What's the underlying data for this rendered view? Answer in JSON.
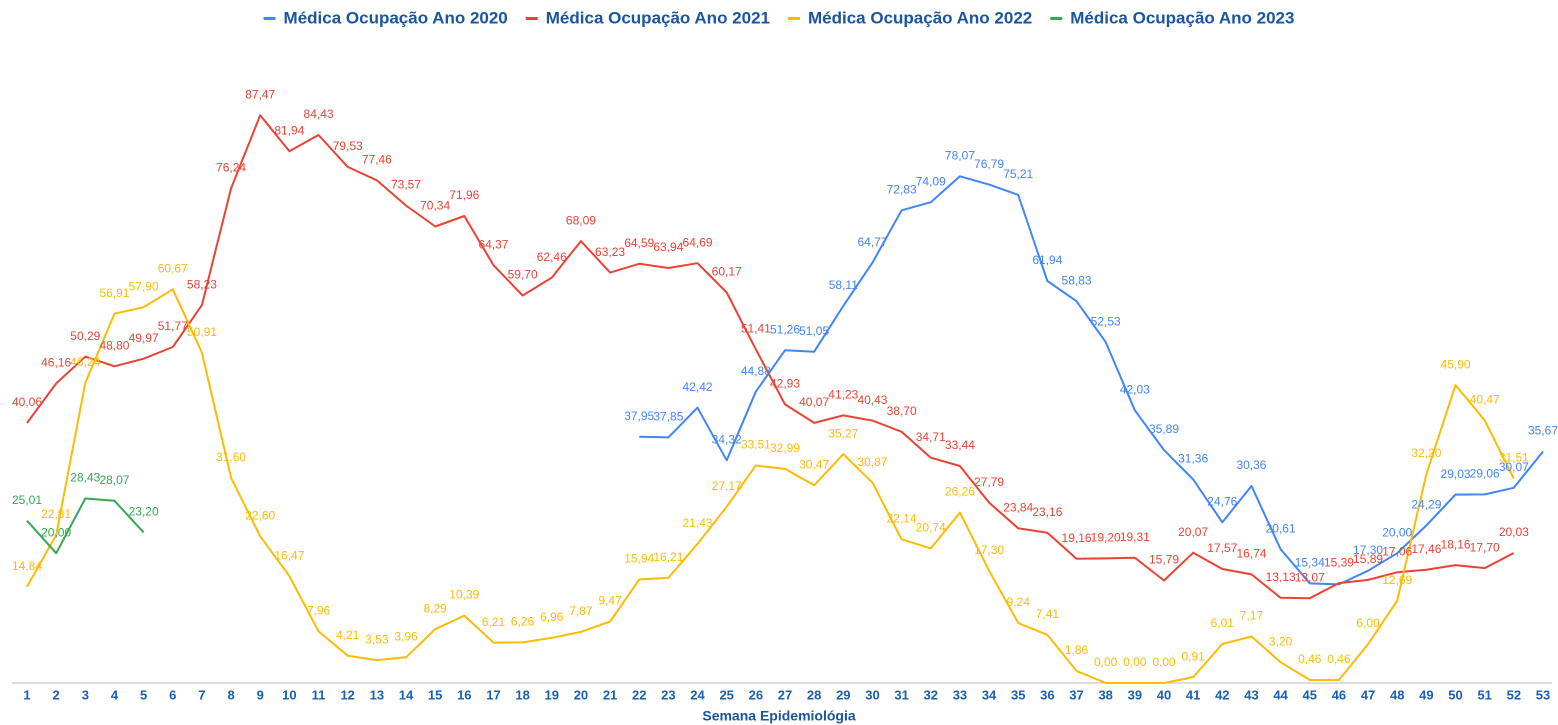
{
  "chart_data": {
    "type": "line",
    "x_label": "Semana Epidemiológia",
    "legend": "top",
    "ylim": [
      0,
      100
    ],
    "categories": [
      1,
      2,
      3,
      4,
      5,
      6,
      7,
      8,
      9,
      10,
      11,
      12,
      13,
      14,
      15,
      16,
      17,
      18,
      19,
      20,
      21,
      22,
      23,
      24,
      25,
      26,
      27,
      28,
      29,
      30,
      31,
      32,
      33,
      34,
      35,
      36,
      37,
      38,
      39,
      40,
      41,
      42,
      43,
      44,
      45,
      46,
      47,
      48,
      49,
      50,
      51,
      52,
      53
    ],
    "series": [
      {
        "name": "Médica Ocupação Ano 2020",
        "color": "#4285f4",
        "values": [
          null,
          null,
          null,
          null,
          null,
          null,
          null,
          null,
          null,
          null,
          null,
          null,
          null,
          null,
          null,
          null,
          null,
          null,
          null,
          null,
          null,
          37.95,
          37.85,
          42.42,
          34.32,
          44.88,
          51.26,
          51.05,
          58.11,
          64.77,
          72.83,
          74.09,
          78.07,
          76.79,
          75.21,
          61.94,
          58.83,
          52.53,
          42.03,
          35.89,
          31.36,
          24.76,
          30.36,
          20.61,
          15.34,
          15.2,
          17.3,
          20.0,
          24.29,
          29.03,
          29.06,
          30.07,
          35.67
        ],
        "value_labels": [
          null,
          null,
          null,
          null,
          null,
          null,
          null,
          null,
          null,
          null,
          null,
          null,
          null,
          null,
          null,
          null,
          null,
          null,
          null,
          null,
          null,
          "37,95",
          "37,85",
          "42,42",
          "34,32",
          "44,88",
          "51,26",
          "51,05",
          "58,11",
          "64,77",
          "72,83",
          "74,09",
          "78,07",
          "76,79",
          "75,21",
          "61,94",
          "58,83",
          "52,53",
          "42,03",
          "35,89",
          "31,36",
          "24,76",
          "30,36",
          "20,61",
          "15,34",
          null,
          "17,30",
          "20,00",
          "24,29",
          "29,03",
          "29,06",
          "30,07",
          "35,67"
        ]
      },
      {
        "name": "Médica Ocupação Ano 2021",
        "color": "#ea4335",
        "values": [
          40.06,
          46.16,
          50.29,
          48.8,
          49.97,
          51.77,
          58.23,
          76.24,
          87.47,
          81.94,
          84.43,
          79.53,
          77.46,
          73.57,
          70.34,
          71.96,
          64.37,
          59.7,
          62.46,
          68.09,
          63.23,
          64.59,
          63.94,
          64.69,
          60.17,
          51.41,
          42.93,
          40.07,
          41.23,
          40.43,
          38.7,
          34.71,
          33.44,
          27.79,
          23.84,
          23.16,
          19.16,
          19.2,
          19.31,
          15.79,
          20.07,
          17.57,
          16.74,
          13.13,
          13.07,
          15.39,
          15.89,
          17.06,
          17.46,
          18.16,
          17.7,
          20.03,
          null
        ],
        "value_labels": [
          "40,06",
          "46,16",
          "50,29",
          "48,80",
          "49,97",
          "51,77",
          "58,23",
          "76,24",
          "87,47",
          "81,94",
          "84,43",
          "79,53",
          "77,46",
          "73,57",
          "70,34",
          "71,96",
          "64,37",
          "59,70",
          "62,46",
          "68,09",
          "63,23",
          "64,59",
          "63,94",
          "64,69",
          "60,17",
          "51,41",
          "42,93",
          "40,07",
          "41,23",
          "40,43",
          "38,70",
          "34,71",
          "33,44",
          "27,79",
          "23,84",
          "23,16",
          "19,16",
          "19,20",
          "19,31",
          "15,79",
          "20,07",
          "17,57",
          "16,74",
          "13,13",
          "13,07",
          "15,39",
          "15,89",
          "17,06",
          "17,46",
          "18,16",
          "17,70",
          "20,03",
          null
        ]
      },
      {
        "name": "Médica Ocupação Ano 2022",
        "color": "#fbbc04",
        "values": [
          14.84,
          22.81,
          46.24,
          56.91,
          57.9,
          60.67,
          50.91,
          31.6,
          22.6,
          16.47,
          7.96,
          4.21,
          3.53,
          3.96,
          8.29,
          10.39,
          6.21,
          6.26,
          6.96,
          7.87,
          9.47,
          15.94,
          16.21,
          21.43,
          27.17,
          33.51,
          32.99,
          30.47,
          35.27,
          30.87,
          22.14,
          20.74,
          26.26,
          17.3,
          9.24,
          7.41,
          1.86,
          0.0,
          0.0,
          0.0,
          0.91,
          6.01,
          7.17,
          3.2,
          0.46,
          0.46,
          6.0,
          12.69,
          32.2,
          45.9,
          40.47,
          31.51,
          null
        ],
        "value_labels": [
          "14,84",
          "22,81",
          "46,24",
          "56,91",
          "57,90",
          "60,67",
          "50,91",
          "31,60",
          "22,60",
          "16,47",
          "7,96",
          "4,21",
          "3,53",
          "3,96",
          "8,29",
          "10,39",
          "6,21",
          "6,26",
          "6,96",
          "7,87",
          "9,47",
          "15,94",
          "16,21",
          "21,43",
          "27,17",
          "33,51",
          "32,99",
          "30,47",
          "35,27",
          "30,87",
          "22,14",
          "20,74",
          "26,26",
          "17,30",
          "9,24",
          "7,41",
          "1,86",
          "0,00",
          "0,00",
          "0,00",
          "0,91",
          "6,01",
          "7,17",
          "3,20",
          "0,46",
          "0,46",
          "6,00",
          "12,69",
          "32,20",
          "45,90",
          "40,47",
          "31,51",
          null
        ]
      },
      {
        "name": "Médica Ocupação Ano 2023",
        "color": "#34a853",
        "values": [
          25.01,
          20.0,
          28.43,
          28.07,
          23.2,
          null,
          null,
          null,
          null,
          null,
          null,
          null,
          null,
          null,
          null,
          null,
          null,
          null,
          null,
          null,
          null,
          null,
          null,
          null,
          null,
          null,
          null,
          null,
          null,
          null,
          null,
          null,
          null,
          null,
          null,
          null,
          null,
          null,
          null,
          null,
          null,
          null,
          null,
          null,
          null,
          null,
          null,
          null,
          null,
          null,
          null,
          null,
          null
        ],
        "value_labels": [
          "25,01",
          "20,00",
          "28,43",
          "28,07",
          "23,20",
          null,
          null,
          null,
          null,
          null,
          null,
          null,
          null,
          null,
          null,
          null,
          null,
          null,
          null,
          null,
          null,
          null,
          null,
          null,
          null,
          null,
          null,
          null,
          null,
          null,
          null,
          null,
          null,
          null,
          null,
          null,
          null,
          null,
          null,
          null,
          null,
          null,
          null,
          null,
          null,
          null,
          null,
          null,
          null,
          null,
          null,
          null,
          null
        ]
      }
    ]
  }
}
